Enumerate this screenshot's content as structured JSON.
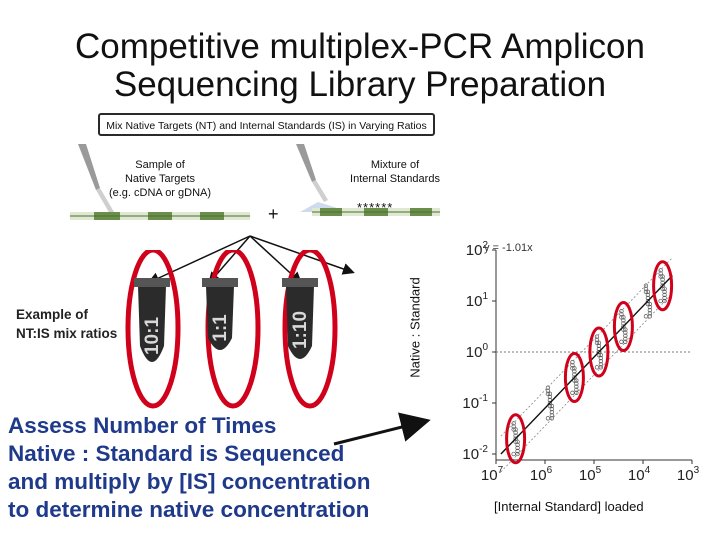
{
  "title": {
    "line1": "Competitive multiplex-PCR Amplicon",
    "line2": "Sequencing Library Preparation"
  },
  "mix_box": "Mix Native Targets (NT) and Internal Standards (IS) in Varying Ratios",
  "sample": {
    "line1": "Sample of",
    "line2": "Native Targets",
    "line3": "(e.g. cDNA or gDNA)"
  },
  "mixture": {
    "line1": "Mixture of",
    "line2": "Internal Standards"
  },
  "plus": "+",
  "stars": "******",
  "example": {
    "line1": "Example of",
    "line2": "NT:IS mix ratios"
  },
  "ratios": [
    "10:1",
    "1:1",
    "1:10"
  ],
  "assess": {
    "line1": "Assess Number of Times",
    "line2": "Native : Standard is Sequenced",
    "line3": "and multiply by [IS] concentration",
    "line4": "to determine native concentration"
  },
  "chart_data": {
    "type": "scatter",
    "equation": "y = -1.01x",
    "ylabel": "Native : Standard",
    "xlabel": "[Internal Standard] loaded",
    "x_scale": "log, reversed",
    "y_scale": "log",
    "xlim": [
      10000000,
      1000
    ],
    "ylim": [
      0.01,
      100
    ],
    "y_ticks": [
      "10^2",
      "10^1",
      "10^0",
      "10^-1",
      "10^-2"
    ],
    "x_ticks": [
      "10^7",
      "10^6",
      "10^5",
      "10^4",
      "10^3"
    ],
    "reference_line_y": 1,
    "fit_slope": -1.01,
    "highlighted_groups": [
      "~10^-2",
      "~10^-1",
      "~10^0",
      "~10^1",
      "~10^2"
    ],
    "colors": {
      "highlight": "#d0021b",
      "points": "#555555",
      "fit": "#111111"
    }
  },
  "colors": {
    "accent_red": "#d0021b",
    "text_blue": "#1f3a8a",
    "tube_dark": "#2b2b2b",
    "dna_green": "#6a8f4a"
  }
}
